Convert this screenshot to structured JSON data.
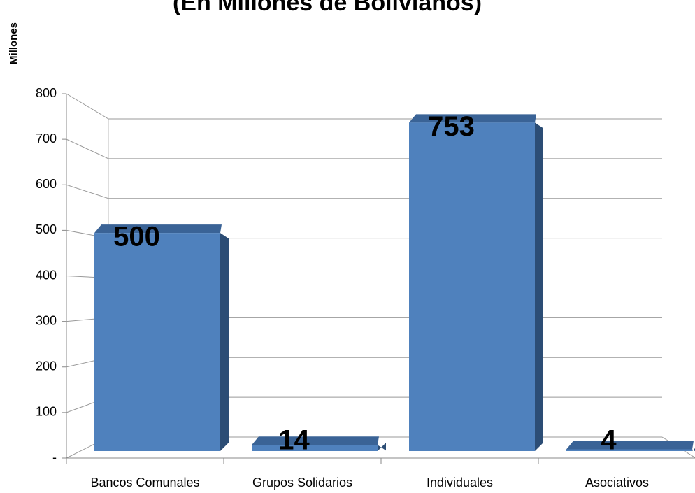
{
  "chart_data": {
    "type": "bar",
    "title": "(En Millones de Bolivianos)",
    "y_label": "Millones",
    "categories": [
      "Bancos Comunales",
      "Grupos Solidarios",
      "Individuales",
      "Asociativos"
    ],
    "values": [
      500,
      14,
      753,
      4
    ],
    "color": "#4f81bd",
    "ylim": [
      0,
      800
    ],
    "yticks": [
      {
        "value": 0,
        "label": "-"
      },
      100,
      200,
      300,
      400,
      500,
      600,
      700,
      800
    ],
    "grid": true
  }
}
